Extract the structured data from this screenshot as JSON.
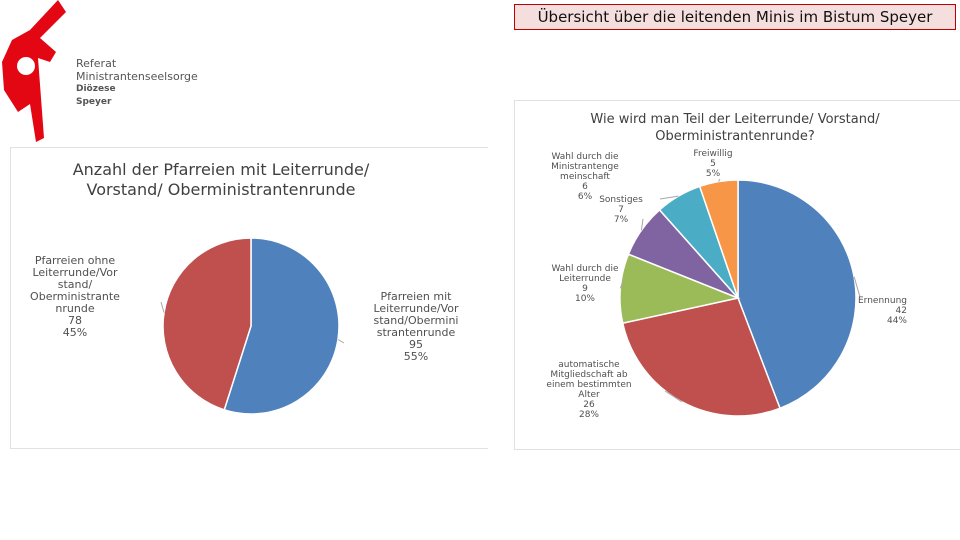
{
  "header": {
    "title": "Übersicht über die leitenden Minis im Bistum Speyer"
  },
  "logo": {
    "line1": "Referat",
    "line2": "Ministrantenseelsorge",
    "line3": "Diözese",
    "line4": "Speyer",
    "colors": {
      "red": "#e30613",
      "gray": "#555555"
    }
  },
  "chart_data": [
    {
      "type": "pie",
      "title": "Anzahl der Pfarreien mit Leiterrunde/ Vorstand/ Oberministrantenrunde",
      "title_lines": [
        "Anzahl der Pfarreien mit Leiterrunde/",
        "Vorstand/ Oberministrantenrunde"
      ],
      "slices": [
        {
          "label": "Pfarreien mit Leiterrunde/Vorstand/Oberministrantenrunde",
          "label_lines": [
            "Pfarreien mit",
            "Leiterrunde/Vor",
            "stand/Obermini",
            "strantenrunde"
          ],
          "value": 95,
          "percent": "55%",
          "color": "#4f81bd"
        },
        {
          "label": "Pfarreien ohne Leiterrunde/Vorstand/Oberministrantenrunde",
          "label_lines": [
            "Pfarreien ohne",
            "Leiterrunde/Vor",
            "stand/",
            "Oberministrante",
            "nrunde"
          ],
          "value": 78,
          "percent": "45%",
          "color": "#c0504d"
        }
      ]
    },
    {
      "type": "pie",
      "title": "Wie wird man Teil der Leiterrunde/ Vorstand/ Oberministrantenrunde?",
      "title_lines": [
        "Wie wird man Teil der Leiterrunde/ Vorstand/",
        "Oberministrantenrunde?"
      ],
      "slices": [
        {
          "label": "Ernennung",
          "label_lines": [
            "Ernennung"
          ],
          "value": 42,
          "percent": "44%",
          "color": "#4f81bd"
        },
        {
          "label": "automatische Mitgliedschaft ab einem bestimmten Alter",
          "label_lines": [
            "automatische",
            "Mitgliedschaft ab",
            "einem bestimmten",
            "Alter"
          ],
          "value": 26,
          "percent": "28%",
          "color": "#c0504d"
        },
        {
          "label": "Wahl durch die Leiterrunde",
          "label_lines": [
            "Wahl durch die",
            "Leiterrunde"
          ],
          "value": 9,
          "percent": "10%",
          "color": "#9bbb59"
        },
        {
          "label": "Sonstiges",
          "label_lines": [
            "Sonstiges"
          ],
          "value": 7,
          "percent": "7%",
          "color": "#8064a2"
        },
        {
          "label": "Wahl durch die Ministrantengemeinschaft",
          "label_lines": [
            "Wahl durch die",
            "Ministrantenge",
            "meinschaft"
          ],
          "value": 6,
          "percent": "6%",
          "color": "#4bacc6"
        },
        {
          "label": "Freiwillig",
          "label_lines": [
            "Freiwillig"
          ],
          "value": 5,
          "percent": "5%",
          "color": "#f79646"
        }
      ]
    }
  ]
}
